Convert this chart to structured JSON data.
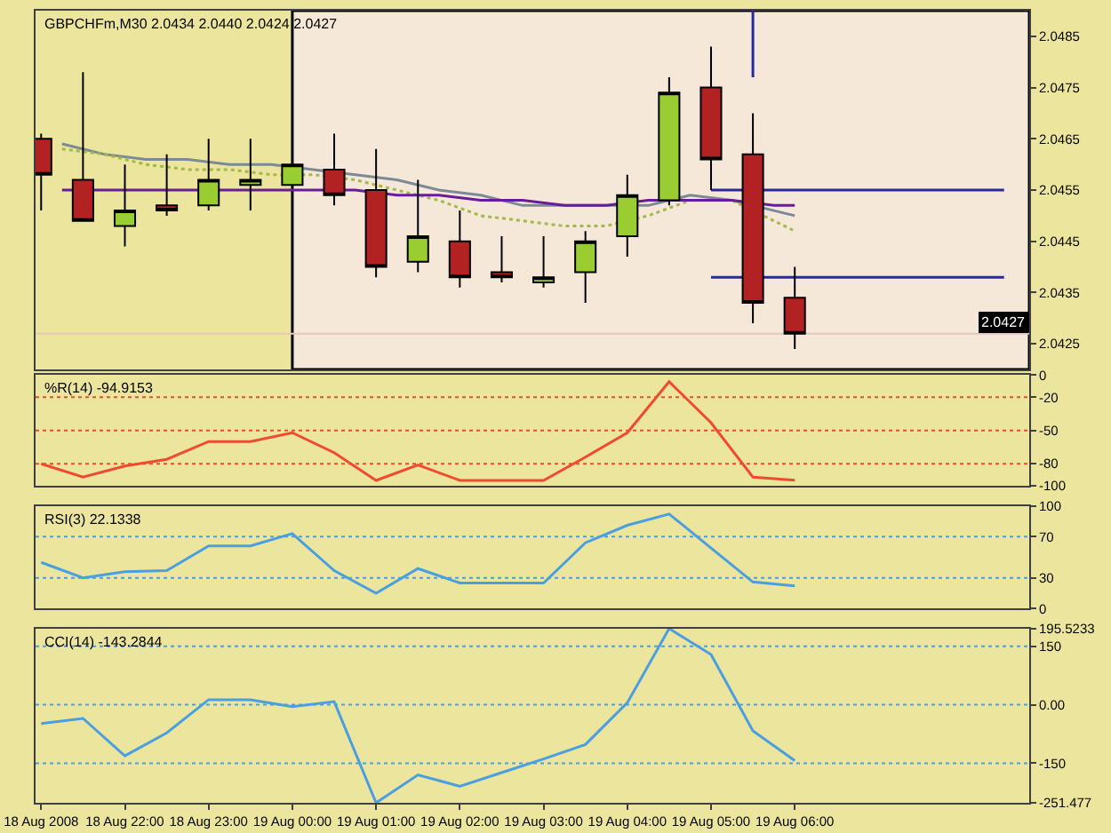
{
  "chart_data": [
    {
      "type": "candlestick",
      "title": "GBPCHFm,M30 2.0434 2.0440 2.0424 2.0427",
      "x": [
        "2008-08-18T21:00",
        "2008-08-18T21:30",
        "2008-08-18T22:00",
        "2008-08-18T22:30",
        "2008-08-18T23:00",
        "2008-08-18T23:30",
        "2008-08-19T00:00",
        "2008-08-19T00:30",
        "2008-08-19T01:00",
        "2008-08-19T01:30",
        "2008-08-19T02:00",
        "2008-08-19T02:30",
        "2008-08-19T03:00",
        "2008-08-19T03:30",
        "2008-08-19T04:00",
        "2008-08-19T04:30",
        "2008-08-19T05:00",
        "2008-08-19T05:30",
        "2008-08-19T06:00"
      ],
      "ohlc": [
        [
          2.0465,
          2.0466,
          2.0451,
          2.0458
        ],
        [
          2.0457,
          2.0478,
          2.0449,
          2.0449
        ],
        [
          2.0448,
          2.046,
          2.0444,
          2.0451
        ],
        [
          2.0452,
          2.0462,
          2.045,
          2.0451
        ],
        [
          2.0452,
          2.0465,
          2.0451,
          2.0457
        ],
        [
          2.0456,
          2.0465,
          2.0451,
          2.0457
        ],
        [
          2.0456,
          2.046,
          2.0456,
          2.046
        ],
        [
          2.0459,
          2.0466,
          2.0452,
          2.0454
        ],
        [
          2.0455,
          2.0463,
          2.0438,
          2.044
        ],
        [
          2.0441,
          2.0457,
          2.0439,
          2.0446
        ],
        [
          2.0445,
          2.0451,
          2.0436,
          2.0438
        ],
        [
          2.0439,
          2.0446,
          2.0437,
          2.0438
        ],
        [
          2.0437,
          2.0446,
          2.0436,
          2.0438
        ],
        [
          2.0439,
          2.0447,
          2.0433,
          2.0445
        ],
        [
          2.0446,
          2.0458,
          2.0442,
          2.0454
        ],
        [
          2.0453,
          2.0477,
          2.0452,
          2.0474
        ],
        [
          2.0475,
          2.0483,
          2.0455,
          2.0461
        ],
        [
          2.0462,
          2.047,
          2.0429,
          2.0433
        ],
        [
          2.0434,
          2.044,
          2.0424,
          2.0427
        ]
      ],
      "colors": [
        "#b22222",
        "#b22222",
        "#9acd32",
        "#b22222",
        "#9acd32",
        "#9acd32",
        "#9acd32",
        "#b22222",
        "#b22222",
        "#9acd32",
        "#b22222",
        "#b22222",
        "#9acd32",
        "#9acd32",
        "#9acd32",
        "#9acd32",
        "#b22222",
        "#b22222",
        "#b22222"
      ],
      "series": [
        {
          "type": "line",
          "color": "#7a8a96",
          "x": [
            "2008-08-18T21:15",
            "2008-08-18T21:45",
            "2008-08-18T22:15",
            "2008-08-18T22:45",
            "2008-08-18T23:15",
            "2008-08-18T23:45",
            "2008-08-19T00:15",
            "2008-08-19T00:45",
            "2008-08-19T01:15",
            "2008-08-19T01:45",
            "2008-08-19T02:15",
            "2008-08-19T02:45",
            "2008-08-19T03:15",
            "2008-08-19T03:45",
            "2008-08-19T04:15",
            "2008-08-19T04:45",
            "2008-08-19T05:15",
            "2008-08-19T05:45",
            "2008-08-19T06:00"
          ],
          "values": [
            2.0464,
            2.0462,
            2.0461,
            2.0461,
            2.046,
            2.046,
            2.0459,
            2.0458,
            2.0457,
            2.0455,
            2.0454,
            2.0452,
            2.0452,
            2.0452,
            2.0452,
            2.0454,
            2.0453,
            2.0451,
            2.045
          ]
        },
        {
          "type": "line",
          "color": "#a4b84a",
          "line_style": "dotted",
          "x": [
            "2008-08-18T21:15",
            "2008-08-18T21:45",
            "2008-08-18T22:15",
            "2008-08-18T22:45",
            "2008-08-18T23:15",
            "2008-08-18T23:45",
            "2008-08-19T00:15",
            "2008-08-19T00:45",
            "2008-08-19T01:15",
            "2008-08-19T01:45",
            "2008-08-19T02:15",
            "2008-08-19T02:45",
            "2008-08-19T03:15",
            "2008-08-19T03:45",
            "2008-08-19T04:15",
            "2008-08-19T04:45",
            "2008-08-19T05:15",
            "2008-08-19T05:45",
            "2008-08-19T06:00"
          ],
          "values": [
            2.0463,
            2.0462,
            2.046,
            2.0459,
            2.0459,
            2.0458,
            2.0458,
            2.0457,
            2.0455,
            2.0453,
            2.045,
            2.0449,
            2.0448,
            2.0448,
            2.045,
            2.0453,
            2.0453,
            2.0449,
            2.0447
          ]
        },
        {
          "type": "line",
          "color": "#6a1b9a",
          "x": [
            "2008-08-18T21:15",
            "2008-08-18T21:45",
            "2008-08-18T22:15",
            "2008-08-18T22:45",
            "2008-08-18T23:15",
            "2008-08-18T23:45",
            "2008-08-19T00:15",
            "2008-08-19T00:45",
            "2008-08-19T01:15",
            "2008-08-19T01:45",
            "2008-08-19T02:15",
            "2008-08-19T02:45",
            "2008-08-19T03:15",
            "2008-08-19T03:45",
            "2008-08-19T04:15",
            "2008-08-19T04:45",
            "2008-08-19T05:15",
            "2008-08-19T05:45",
            "2008-08-19T06:00"
          ],
          "values": [
            2.0455,
            2.0455,
            2.0455,
            2.0455,
            2.0455,
            2.0455,
            2.0455,
            2.0455,
            2.0454,
            2.0454,
            2.0453,
            2.0453,
            2.0452,
            2.0452,
            2.0453,
            2.0453,
            2.0453,
            2.0452,
            2.0452
          ]
        },
        {
          "type": "line",
          "color": "#2828a0",
          "x": [
            "2008-08-19T05:00",
            "2008-08-19T08:30"
          ],
          "values": [
            2.0455,
            2.0455
          ]
        },
        {
          "type": "line",
          "color": "#2828a0",
          "x": [
            "2008-08-19T05:00",
            "2008-08-19T08:30"
          ],
          "values": [
            2.0438,
            2.0438
          ]
        },
        {
          "type": "line",
          "color": "#2828a0",
          "x": [
            "2008-08-19T05:30",
            "2008-08-19T05:30"
          ],
          "values": [
            2.049,
            2.0477
          ]
        }
      ],
      "ref_lines": [
        {
          "axis": "y",
          "value": 2.0427,
          "label": "2.0427",
          "color": "#e6c6bc"
        }
      ],
      "bands": [
        {
          "axis": "x",
          "from": "2008-08-19T00:00",
          "to": "2008-08-19T08:48",
          "color": "#f6e8d8"
        }
      ],
      "xlim": [
        "2008-08-18T20:56",
        "2008-08-19T08:48"
      ],
      "ylim": [
        2.042,
        2.049
      ],
      "yticks": [
        2.0425,
        2.0435,
        2.0445,
        2.0455,
        2.0465,
        2.0475,
        2.0485
      ],
      "tick_labels": "y"
    },
    {
      "type": "line",
      "title": "%R(14) -94.9153",
      "x": [
        "2008-08-18T21:00",
        "2008-08-18T21:30",
        "2008-08-18T22:00",
        "2008-08-18T22:30",
        "2008-08-18T23:00",
        "2008-08-18T23:30",
        "2008-08-19T00:00",
        "2008-08-19T00:30",
        "2008-08-19T01:00",
        "2008-08-19T01:30",
        "2008-08-19T02:00",
        "2008-08-19T02:30",
        "2008-08-19T03:00",
        "2008-08-19T03:30",
        "2008-08-19T04:00",
        "2008-08-19T04:30",
        "2008-08-19T05:00",
        "2008-08-19T05:30",
        "2008-08-19T06:00"
      ],
      "series": [
        {
          "color": "#f04a30",
          "values": [
            -80,
            -92,
            -82,
            -76,
            -60,
            -60,
            -52,
            -70,
            -95,
            -81,
            -95,
            -95,
            -95,
            -74,
            -52,
            -6,
            -43,
            -92,
            -94.9153
          ]
        }
      ],
      "ref_lines": [
        {
          "axis": "y",
          "value": -20,
          "color": "#f04a30",
          "line_style": "dotted"
        },
        {
          "axis": "y",
          "value": -50,
          "color": "#f04a30",
          "line_style": "dotted"
        },
        {
          "axis": "y",
          "value": -80,
          "color": "#f04a30",
          "line_style": "dotted"
        }
      ],
      "xlim": [
        "2008-08-18T20:56",
        "2008-08-19T08:48"
      ],
      "ylim": [
        -100,
        0
      ],
      "yticks": [
        0,
        -20,
        -50,
        -80,
        -100
      ],
      "tick_labels": "y"
    },
    {
      "type": "line",
      "title": "RSI(3) 22.1338",
      "x": [
        "2008-08-18T21:00",
        "2008-08-18T21:30",
        "2008-08-18T22:00",
        "2008-08-18T22:30",
        "2008-08-18T23:00",
        "2008-08-18T23:30",
        "2008-08-19T00:00",
        "2008-08-19T00:30",
        "2008-08-19T01:00",
        "2008-08-19T01:30",
        "2008-08-19T02:00",
        "2008-08-19T02:30",
        "2008-08-19T03:00",
        "2008-08-19T03:30",
        "2008-08-19T04:00",
        "2008-08-19T04:30",
        "2008-08-19T05:00",
        "2008-08-19T05:30",
        "2008-08-19T06:00"
      ],
      "series": [
        {
          "color": "#4a9fe0",
          "values": [
            45,
            30,
            36,
            37,
            61,
            61,
            73,
            37,
            15,
            39,
            25,
            25,
            25,
            64,
            81,
            92,
            59,
            26,
            22.1338
          ]
        }
      ],
      "ref_lines": [
        {
          "axis": "y",
          "value": 70,
          "color": "#4a9fe0",
          "line_style": "dotted"
        },
        {
          "axis": "y",
          "value": 30,
          "color": "#4a9fe0",
          "line_style": "dotted"
        }
      ],
      "xlim": [
        "2008-08-18T20:56",
        "2008-08-19T08:48"
      ],
      "ylim": [
        0,
        100
      ],
      "yticks": [
        100,
        70,
        30,
        0
      ],
      "tick_labels": "y"
    },
    {
      "type": "line",
      "title": "CCI(14) -143.2844",
      "x": [
        "2008-08-18T21:00",
        "2008-08-18T21:30",
        "2008-08-18T22:00",
        "2008-08-18T22:30",
        "2008-08-18T23:00",
        "2008-08-18T23:30",
        "2008-08-19T00:00",
        "2008-08-19T00:30",
        "2008-08-19T01:00",
        "2008-08-19T01:30",
        "2008-08-19T02:00",
        "2008-08-19T02:30",
        "2008-08-19T03:00",
        "2008-08-19T03:30",
        "2008-08-19T04:00",
        "2008-08-19T04:30",
        "2008-08-19T05:00",
        "2008-08-19T05:30",
        "2008-08-19T06:00"
      ],
      "series": [
        {
          "color": "#4a9fe0",
          "values": [
            -48,
            -35,
            -131,
            -72,
            13,
            13,
            -5,
            8,
            -251.477,
            -180,
            -209,
            -174,
            -139,
            -102,
            5,
            195.5233,
            129,
            -67,
            -143.2844
          ]
        }
      ],
      "ref_lines": [
        {
          "axis": "y",
          "value": 150,
          "color": "#4a9fe0",
          "line_style": "dotted"
        },
        {
          "axis": "y",
          "value": 0,
          "color": "#4a9fe0",
          "line_style": "dotted"
        },
        {
          "axis": "y",
          "value": -150,
          "color": "#4a9fe0",
          "line_style": "dotted"
        }
      ],
      "xlim": [
        "2008-08-18T20:56",
        "2008-08-19T08:48"
      ],
      "ylim": [
        -251.477,
        195.5233
      ],
      "yticks": [
        195.5233,
        150,
        {
          "value": 0,
          "label": "0.00"
        },
        -150,
        -251.477
      ],
      "xticks": [
        {
          "value": "2008-08-18T21:00",
          "label": "18 Aug 2008"
        },
        {
          "value": "2008-08-18T22:00",
          "label": "18 Aug 22:00"
        },
        {
          "value": "2008-08-18T23:00",
          "label": "18 Aug 23:00"
        },
        {
          "value": "2008-08-19T00:00",
          "label": "19 Aug 00:00"
        },
        {
          "value": "2008-08-19T01:00",
          "label": "19 Aug 01:00"
        },
        {
          "value": "2008-08-19T02:00",
          "label": "19 Aug 02:00"
        },
        {
          "value": "2008-08-19T03:00",
          "label": "19 Aug 03:00"
        },
        {
          "value": "2008-08-19T04:00",
          "label": "19 Aug 04:00"
        },
        {
          "value": "2008-08-19T05:00",
          "label": "19 Aug 05:00"
        },
        {
          "value": "2008-08-19T06:00",
          "label": "19 Aug 06:00"
        }
      ]
    }
  ]
}
